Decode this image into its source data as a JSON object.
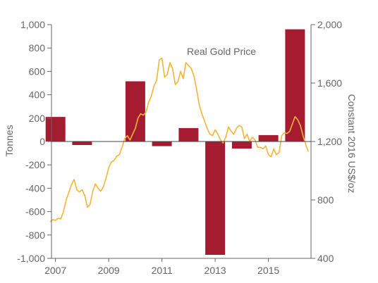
{
  "chart_data": {
    "type": "bar",
    "bars": {
      "name": "Tonnes",
      "categories": [
        "2007",
        "2008",
        "2009",
        "2010",
        "2011",
        "2012",
        "2013",
        "2014",
        "2015",
        "2016"
      ],
      "values": [
        210,
        -30,
        0,
        515,
        -40,
        115,
        -970,
        -60,
        55,
        960
      ]
    },
    "line": {
      "name": "Real Gold Price",
      "x": [
        2006.9,
        2007.0,
        2007.1,
        2007.2,
        2007.3,
        2007.4,
        2007.5,
        2007.6,
        2007.7,
        2007.8,
        2007.9,
        2008.0,
        2008.1,
        2008.2,
        2008.3,
        2008.4,
        2008.5,
        2008.6,
        2008.7,
        2008.8,
        2008.9,
        2009.0,
        2009.1,
        2009.2,
        2009.3,
        2009.4,
        2009.5,
        2009.6,
        2009.7,
        2009.8,
        2009.9,
        2010.0,
        2010.1,
        2010.2,
        2010.3,
        2010.4,
        2010.5,
        2010.6,
        2010.7,
        2010.8,
        2010.9,
        2011.0,
        2011.1,
        2011.2,
        2011.3,
        2011.4,
        2011.5,
        2011.6,
        2011.7,
        2011.8,
        2011.9,
        2012.0,
        2012.1,
        2012.2,
        2012.3,
        2012.4,
        2012.5,
        2012.6,
        2012.7,
        2012.8,
        2012.9,
        2013.0,
        2013.1,
        2013.2,
        2013.3,
        2013.4,
        2013.5,
        2013.6,
        2013.7,
        2013.8,
        2013.9,
        2014.0,
        2014.1,
        2014.2,
        2014.3,
        2014.4,
        2014.5,
        2014.6,
        2014.7,
        2014.8,
        2014.9,
        2015.0,
        2015.1,
        2015.2,
        2015.3,
        2015.4,
        2015.5,
        2015.6,
        2015.7,
        2015.8,
        2015.9,
        2016.0,
        2016.1,
        2016.2,
        2016.3,
        2016.4,
        2016.5,
        2016.6
      ],
      "y": [
        650,
        665,
        660,
        675,
        670,
        720,
        800,
        850,
        905,
        940,
        870,
        855,
        870,
        830,
        750,
        770,
        860,
        910,
        880,
        860,
        890,
        950,
        1020,
        1060,
        1070,
        1100,
        1110,
        1160,
        1220,
        1240,
        1210,
        1250,
        1290,
        1360,
        1390,
        1380,
        1400,
        1470,
        1510,
        1580,
        1620,
        1760,
        1770,
        1640,
        1660,
        1740,
        1700,
        1590,
        1610,
        1680,
        1630,
        1740,
        1720,
        1700,
        1650,
        1560,
        1450,
        1390,
        1340,
        1290,
        1250,
        1240,
        1280,
        1250,
        1210,
        1190,
        1230,
        1300,
        1270,
        1250,
        1290,
        1310,
        1300,
        1220,
        1250,
        1200,
        1230,
        1210,
        1160,
        1160,
        1150,
        1170,
        1110,
        1095,
        1150,
        1110,
        1125,
        1240,
        1260,
        1255,
        1270,
        1320,
        1370,
        1350,
        1310,
        1240,
        1180,
        1130
      ]
    },
    "x_ticks": [
      "2007",
      "2009",
      "2011",
      "2013",
      "2015"
    ],
    "y_left": {
      "label": "Tonnes",
      "min": -1000,
      "max": 1000,
      "ticks": [
        "1,000",
        "800",
        "600",
        "400",
        "200",
        "0",
        "-200",
        "-400",
        "-600",
        "-800",
        "-1,000"
      ]
    },
    "y_right": {
      "label": "Constant 2016 US$/oz",
      "min": 400,
      "max": 2000,
      "ticks": [
        "2,000",
        "1,600",
        "1,200",
        "800",
        "400"
      ]
    },
    "annotation": "Real Gold Price",
    "colors": {
      "bars": "#A51C30",
      "line": "#F4B435",
      "axis": "#666666"
    },
    "grid": false
  }
}
